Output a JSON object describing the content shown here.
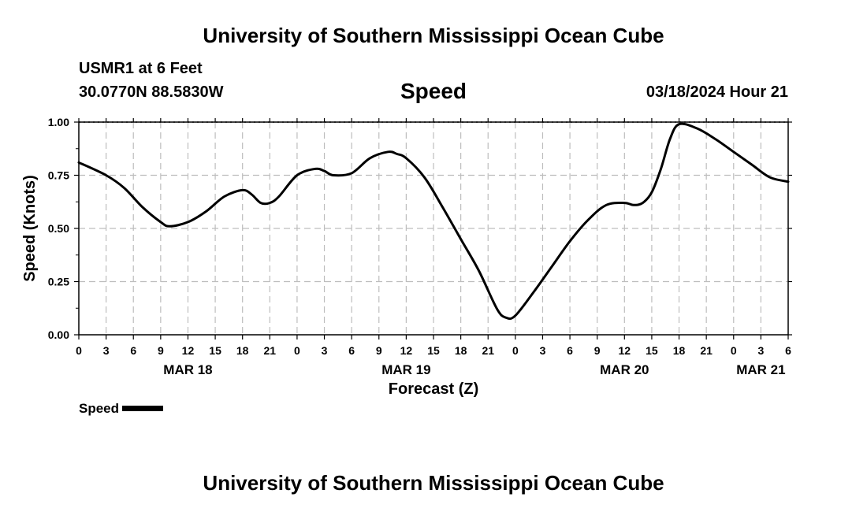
{
  "header": {
    "title": "University of Southern Mississippi Ocean Cube",
    "station": "USMR1 at 6 Feet",
    "coords": "30.0770N  88.5830W",
    "datetime": "03/18/2024 Hour 21"
  },
  "footer": {
    "title": "University of Southern Mississippi Ocean Cube"
  },
  "legend": {
    "label": "Speed"
  },
  "chart_data": {
    "type": "line",
    "title": "Speed",
    "xlabel": "Forecast (Z)",
    "ylabel": "Speed (Knots)",
    "ylim": [
      0,
      1
    ],
    "xlim": [
      0,
      78
    ],
    "y_ticks": [
      "0.00",
      "0.25",
      "0.50",
      "0.75",
      "1.00"
    ],
    "x_tick_labels": [
      "0",
      "3",
      "6",
      "9",
      "12",
      "15",
      "18",
      "21",
      "0",
      "3",
      "6",
      "9",
      "12",
      "15",
      "18",
      "21",
      "0",
      "3",
      "6",
      "9",
      "12",
      "15",
      "18",
      "21",
      "0",
      "3",
      "6"
    ],
    "date_labels": [
      {
        "label": "MAR 18",
        "hour": 12
      },
      {
        "label": "MAR 19",
        "hour": 36
      },
      {
        "label": "MAR 20",
        "hour": 60
      },
      {
        "label": "MAR 21",
        "hour": 75
      }
    ],
    "grid": true,
    "series": [
      {
        "name": "Speed",
        "color": "#000000",
        "x": [
          0,
          3,
          5,
          7,
          9,
          10,
          12,
          14,
          16,
          18,
          19,
          20,
          21,
          22,
          24,
          26,
          27,
          28,
          30,
          32,
          34,
          35,
          36,
          38,
          40,
          42,
          44,
          46,
          47,
          48,
          50,
          52,
          54,
          56,
          58,
          60,
          61,
          62,
          63,
          64,
          65,
          66,
          68,
          70,
          72,
          74,
          76,
          78
        ],
        "y": [
          0.81,
          0.75,
          0.69,
          0.6,
          0.53,
          0.51,
          0.53,
          0.58,
          0.65,
          0.68,
          0.66,
          0.62,
          0.62,
          0.65,
          0.75,
          0.78,
          0.77,
          0.75,
          0.76,
          0.83,
          0.86,
          0.85,
          0.83,
          0.74,
          0.6,
          0.45,
          0.3,
          0.12,
          0.08,
          0.09,
          0.2,
          0.32,
          0.44,
          0.54,
          0.61,
          0.62,
          0.61,
          0.62,
          0.67,
          0.78,
          0.92,
          0.99,
          0.97,
          0.92,
          0.86,
          0.8,
          0.74,
          0.72
        ]
      }
    ]
  }
}
